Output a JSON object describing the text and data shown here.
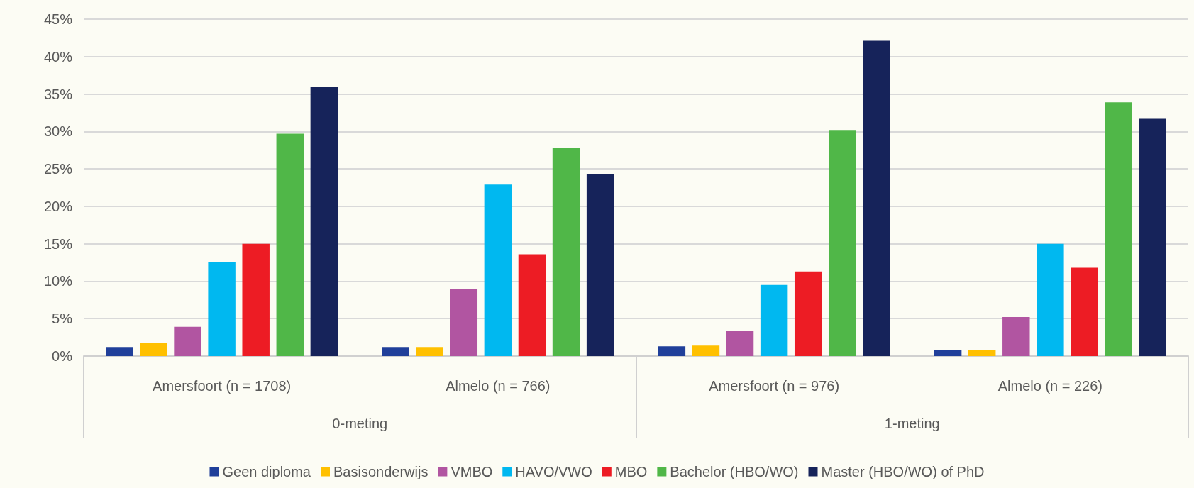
{
  "chart_data": {
    "type": "bar",
    "categories": [
      "Amersfoort (n = 1708)",
      "Almelo (n = 766)",
      "Amersfoort (n = 976)",
      "Almelo (n = 226)"
    ],
    "annotations": [
      "0-meting",
      "1-meting"
    ],
    "series": [
      {
        "name": "Geen diploma",
        "color": "#203f9a",
        "values": [
          1.2,
          1.2,
          1.3,
          0.8
        ]
      },
      {
        "name": "Basisonderwijs",
        "color": "#ffc000",
        "values": [
          1.7,
          1.2,
          1.4,
          0.8
        ]
      },
      {
        "name": "VMBO",
        "color": "#b155a1",
        "values": [
          3.9,
          9.0,
          3.4,
          5.2
        ]
      },
      {
        "name": "HAVO/VWO",
        "color": "#00b8f0",
        "values": [
          12.5,
          22.9,
          9.5,
          15.0
        ]
      },
      {
        "name": "MBO",
        "color": "#ed1c24",
        "values": [
          15.0,
          13.6,
          11.3,
          11.8
        ]
      },
      {
        "name": "Bachelor (HBO/WO)",
        "color": "#50b748",
        "values": [
          29.7,
          27.8,
          30.2,
          33.9
        ]
      },
      {
        "name": "Master (HBO/WO) of PhD",
        "color": "#16235a",
        "values": [
          35.9,
          24.3,
          42.1,
          31.7
        ]
      }
    ],
    "ylim": [
      0,
      45
    ],
    "yticks": [
      {
        "value": 0,
        "label": "0%"
      },
      {
        "value": 5,
        "label": "5%"
      },
      {
        "value": 10,
        "label": "10%"
      },
      {
        "value": 15,
        "label": "15%"
      },
      {
        "value": 20,
        "label": "20%"
      },
      {
        "value": 25,
        "label": "25%"
      },
      {
        "value": 30,
        "label": "30%"
      },
      {
        "value": 35,
        "label": "35%"
      },
      {
        "value": 40,
        "label": "40%"
      },
      {
        "value": 45,
        "label": "45%"
      }
    ],
    "grid": "y",
    "legend": "bottom"
  }
}
